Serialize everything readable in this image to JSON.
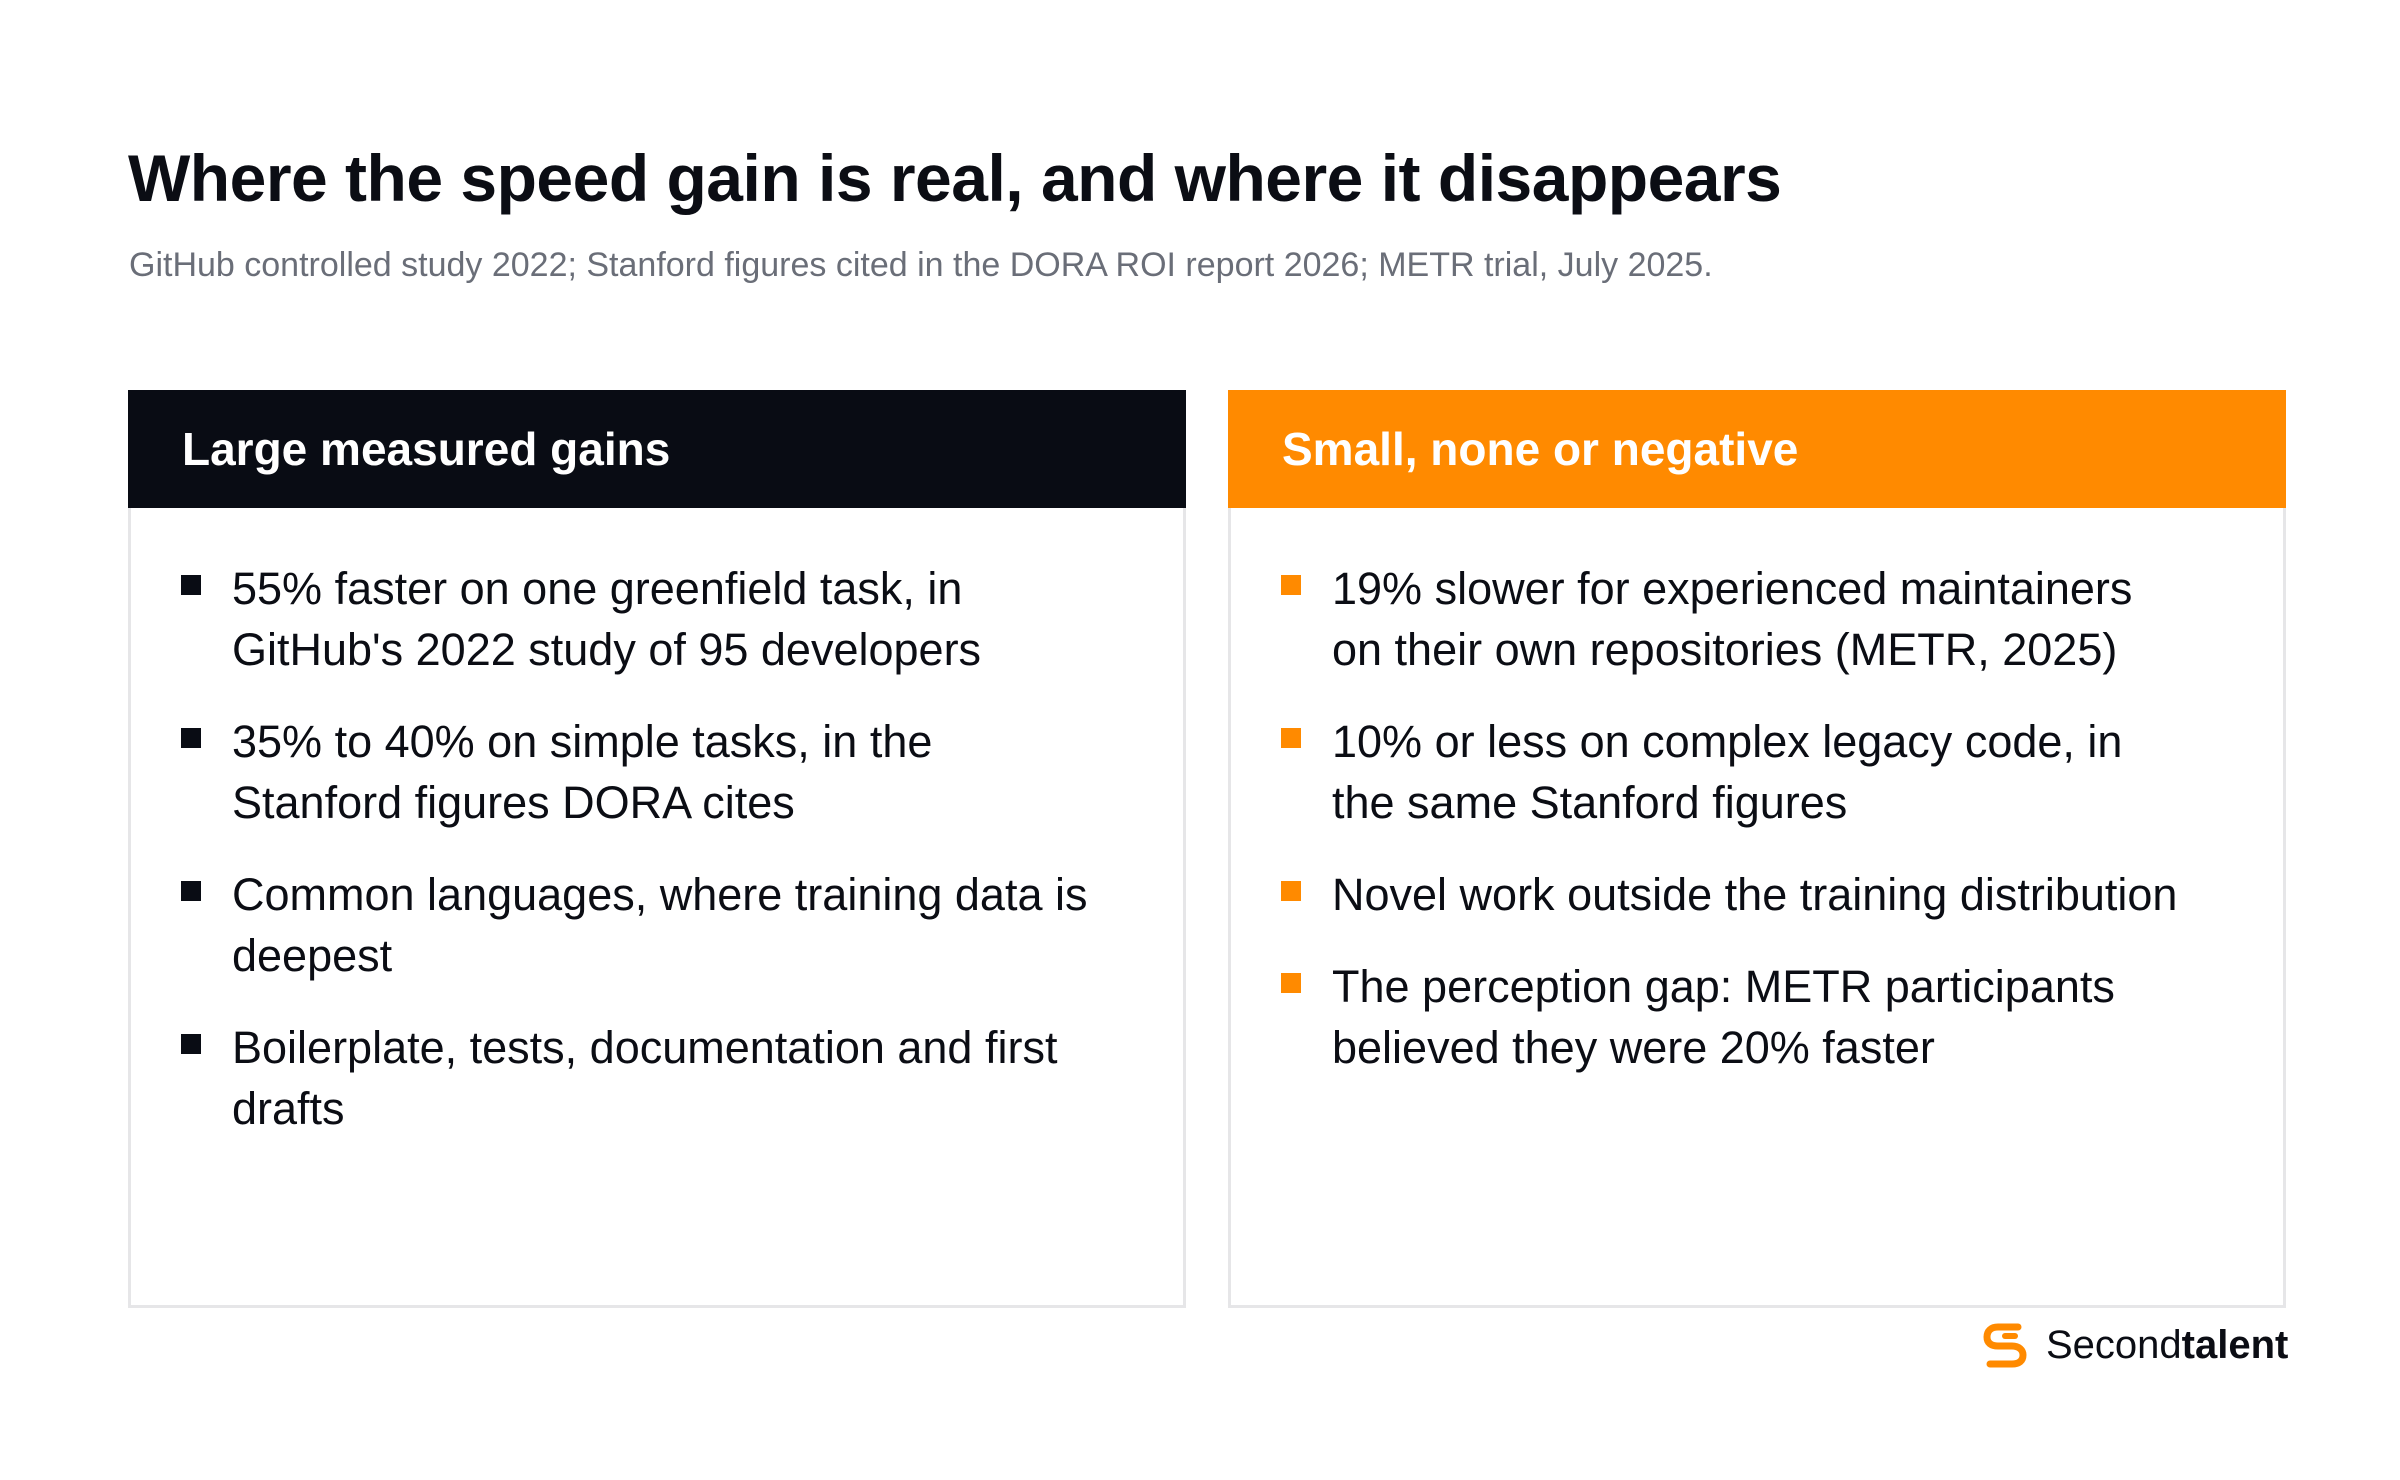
{
  "header": {
    "title": "Where the speed gain is real, and where it disappears",
    "subtitle": "GitHub controlled study 2022; Stanford figures cited in the DORA ROI report 2026; METR trial, July 2025."
  },
  "columns": [
    {
      "heading": "Large measured gains",
      "color": "#090c14",
      "items": [
        "55% faster on one greenfield task, in GitHub's 2022 study of 95 developers",
        "35% to 40% on simple tasks, in the Stanford figures DORA cites",
        "Common languages, where training data is deepest",
        "Boilerplate, tests, documentation and first drafts"
      ]
    },
    {
      "heading": "Small, none or negative",
      "color": "#ff8a00",
      "items": [
        "19% slower for experienced maintainers on their own repositories (METR, 2025)",
        "10% or less on complex legacy code, in the same Stanford figures",
        "Novel work outside the training distribution",
        "The perception gap: METR participants believed they were 20% faster"
      ]
    }
  ],
  "brand": {
    "name_light": "Second",
    "name_bold": "talent",
    "icon": "secondtalent-logo-icon",
    "color": "#ff8a00"
  }
}
